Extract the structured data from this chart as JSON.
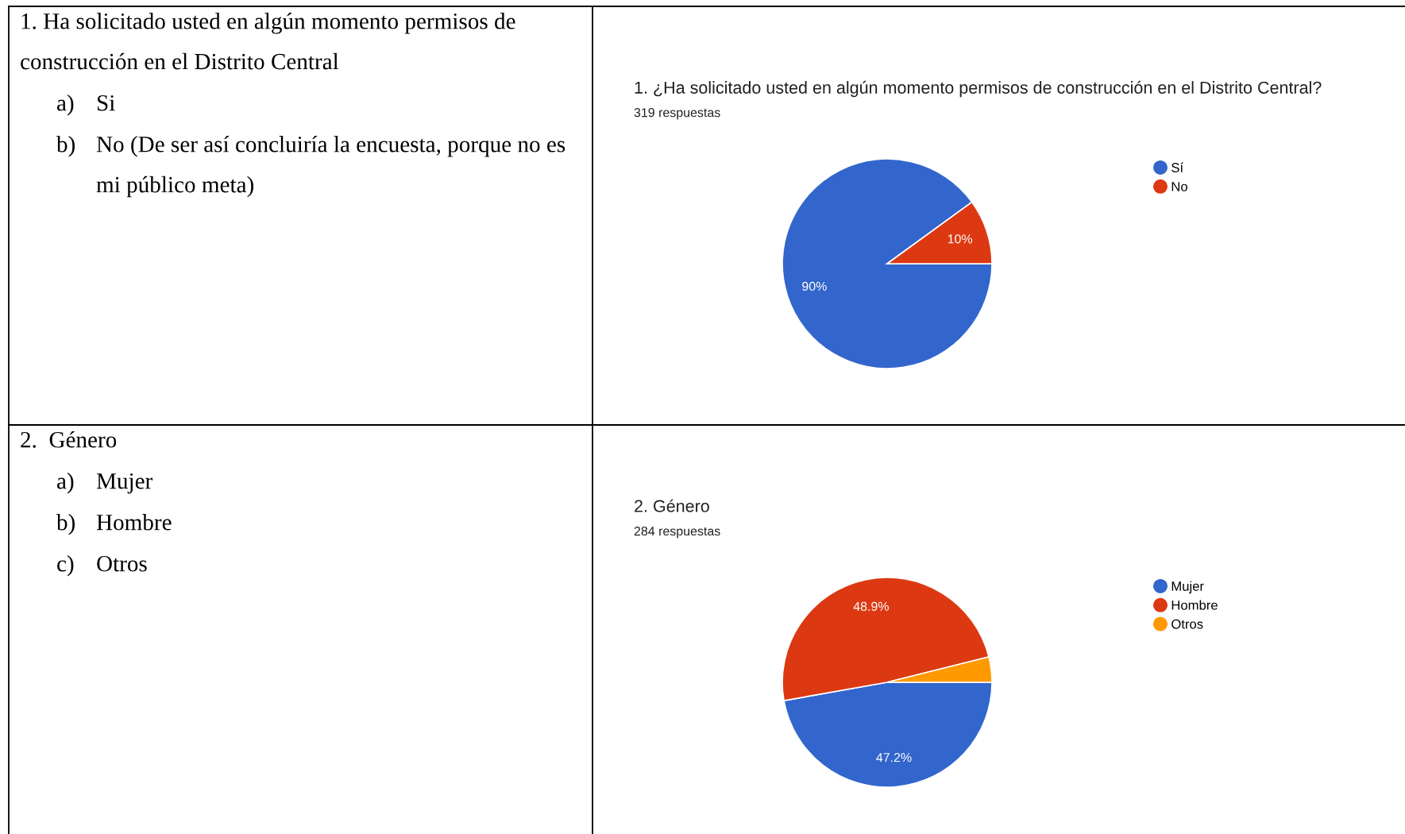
{
  "chart_data": [
    {
      "type": "other",
      "title": "1. Ha solicitado usted en algún momento permisos de construcción en el Distrito Central",
      "annotations": [
        "a) Si",
        "b) No (De ser así concluiría la encuesta, porque no es mi público meta)"
      ]
    },
    {
      "type": "pie",
      "title": "1. ¿Ha solicitado usted en algún momento permisos de construcción en el Distrito Central?",
      "subtitle": "319 respuestas",
      "categories": [
        "Sí",
        "No"
      ],
      "values": [
        90,
        10
      ],
      "colors": [
        "#3366cc",
        "#dc3912"
      ],
      "value_labels": [
        "90%",
        "10%"
      ],
      "legend": "top right"
    },
    {
      "type": "other",
      "title": "2.  Género",
      "annotations": [
        "a) Mujer",
        "b) Hombre",
        "c) Otros"
      ]
    },
    {
      "type": "pie",
      "title": "2. Género",
      "subtitle": "284 respuestas",
      "categories": [
        "Mujer",
        "Hombre",
        "Otros"
      ],
      "values": [
        47.2,
        48.9,
        3.9
      ],
      "colors": [
        "#3366cc",
        "#dc3912",
        "#ff9900"
      ],
      "value_labels": [
        "47.2%",
        "48.9%",
        null
      ],
      "legend": "top right"
    }
  ]
}
